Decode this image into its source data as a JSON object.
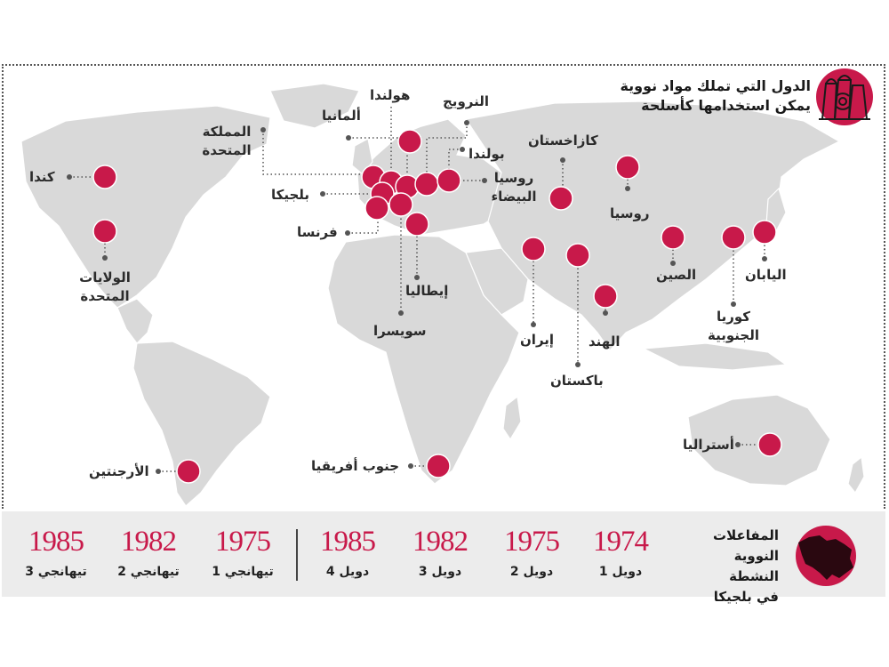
{
  "title": {
    "line1": "الدول التي تملك مواد نووية",
    "line2": "يمكن استخدامها كأسلحة"
  },
  "icons": {
    "reactor": "nuclear-plant-icon",
    "belgium": "belgium-map-icon"
  },
  "colors": {
    "marker": "#c8194a",
    "land": "#d9d9d9",
    "accent_dark": "#2a0810"
  },
  "countries": {
    "canada": "كندا",
    "usa": "الولايات المتحدة",
    "argentina": "الأرجنتين",
    "uk": "المملكة المتحدة",
    "netherlands": "هولندا",
    "germany": "ألمانيا",
    "norway": "النرويج",
    "poland": "بولندا",
    "belarus": "روسيا البيضاء",
    "belgium": "بلجيكا",
    "france": "فرنسا",
    "italy": "إيطاليا",
    "switzerland": "سويسرا",
    "kazakhstan": "كازاخستان",
    "russia": "روسيا",
    "china": "الصين",
    "japan": "اليابان",
    "south_korea": "كوريا الجنوبية",
    "iran": "إيران",
    "pakistan": "باكستان",
    "india": "الهند",
    "south_africa": "جنوب أفريقيا",
    "australia": "أستراليا"
  },
  "belgium_reactors": {
    "title": "المفاعلات النووية النشطة في بلجيكا",
    "items": [
      {
        "year": "1974",
        "name": "دويل 1"
      },
      {
        "year": "1975",
        "name": "دويل 2"
      },
      {
        "year": "1982",
        "name": "دويل 3"
      },
      {
        "year": "1985",
        "name": "دويل 4"
      },
      {
        "year": "1975",
        "name": "تيهانجي 1"
      },
      {
        "year": "1982",
        "name": "تيهانجي 2"
      },
      {
        "year": "1985",
        "name": "تيهانجي 3"
      }
    ]
  }
}
